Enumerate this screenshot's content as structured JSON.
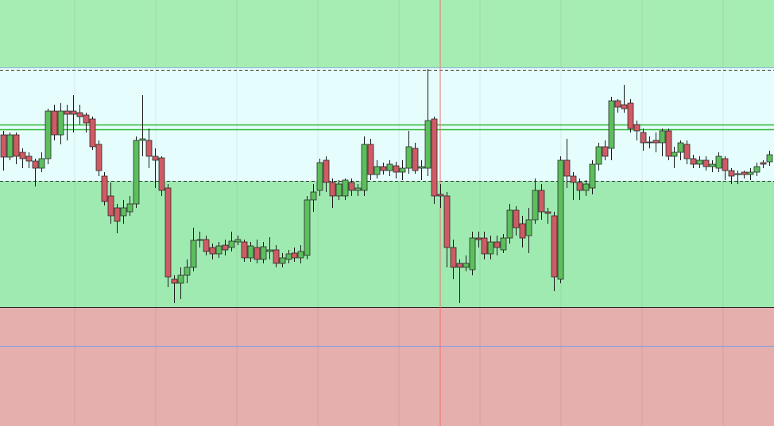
{
  "chart_data": {
    "type": "candlestick",
    "ylim": [
      0,
      537
    ],
    "grid": true,
    "up_color": "#5cbf5c",
    "down_color": "#cf5b64",
    "zones": [
      {
        "from": 452,
        "to": 537,
        "color": "#a6edb3"
      },
      {
        "from": 309,
        "to": 452,
        "color": "#e6fdfd"
      },
      {
        "from": 150,
        "to": 309,
        "color": "#9feab1"
      },
      {
        "from": 0,
        "to": 150,
        "color": "#e5afad"
      }
    ],
    "lines": [
      {
        "value": 452,
        "color": "#8fb0e0",
        "style": "solid"
      },
      {
        "value": 449,
        "color": "#333333",
        "style": "dashed"
      },
      {
        "value": 380,
        "color": "#2db52d",
        "style": "solid"
      },
      {
        "value": 374,
        "color": "#2db52d",
        "style": "solid"
      },
      {
        "value": 309,
        "color": "#333333",
        "style": "dashed"
      },
      {
        "value": 150,
        "color": "#222222",
        "style": "solid"
      },
      {
        "value": 101,
        "color": "#7a9ee8",
        "style": "solid"
      }
    ],
    "candles": [
      [
        367,
        372,
        322,
        339
      ],
      [
        339,
        370,
        335,
        367
      ],
      [
        367,
        370,
        330,
        340
      ],
      [
        345,
        350,
        325,
        337
      ],
      [
        340,
        345,
        325,
        334
      ],
      [
        334,
        337,
        302,
        325
      ],
      [
        325,
        345,
        320,
        337
      ],
      [
        337,
        400,
        330,
        397
      ],
      [
        397,
        405,
        360,
        367
      ],
      [
        367,
        407,
        355,
        397
      ],
      [
        397,
        405,
        360,
        393
      ],
      [
        397,
        417,
        370,
        393
      ],
      [
        395,
        405,
        380,
        390
      ],
      [
        392,
        395,
        370,
        382
      ],
      [
        387,
        390,
        348,
        352
      ],
      [
        355,
        360,
        315,
        322
      ],
      [
        315,
        320,
        278,
        283
      ],
      [
        290,
        307,
        255,
        265
      ],
      [
        275,
        280,
        243,
        258
      ],
      [
        265,
        285,
        255,
        275
      ],
      [
        270,
        290,
        265,
        280
      ],
      [
        280,
        365,
        275,
        360
      ],
      [
        360,
        417,
        340,
        362
      ],
      [
        360,
        375,
        325,
        340
      ],
      [
        340,
        350,
        300,
        335
      ],
      [
        338,
        340,
        290,
        297
      ],
      [
        300,
        305,
        175,
        188
      ],
      [
        185,
        190,
        155,
        180
      ],
      [
        180,
        200,
        160,
        190
      ],
      [
        190,
        210,
        180,
        200
      ],
      [
        200,
        250,
        195,
        234
      ],
      [
        234,
        245,
        225,
        235
      ],
      [
        235,
        240,
        215,
        220
      ],
      [
        225,
        230,
        210,
        217
      ],
      [
        217,
        232,
        212,
        227
      ],
      [
        228,
        235,
        215,
        222
      ],
      [
        225,
        245,
        220,
        233
      ],
      [
        232,
        240,
        228,
        235
      ],
      [
        232,
        235,
        207,
        212
      ],
      [
        212,
        232,
        207,
        227
      ],
      [
        225,
        235,
        205,
        210
      ],
      [
        210,
        232,
        205,
        226
      ],
      [
        220,
        238,
        210,
        222
      ],
      [
        222,
        228,
        200,
        205
      ],
      [
        205,
        218,
        200,
        212
      ],
      [
        210,
        222,
        205,
        217
      ],
      [
        218,
        225,
        207,
        212
      ],
      [
        212,
        228,
        205,
        220
      ],
      [
        215,
        290,
        210,
        285
      ],
      [
        285,
        305,
        270,
        295
      ],
      [
        297,
        337,
        290,
        332
      ],
      [
        335,
        340,
        295,
        307
      ],
      [
        307,
        312,
        275,
        290
      ],
      [
        290,
        310,
        285,
        305
      ],
      [
        290,
        312,
        285,
        310
      ],
      [
        307,
        312,
        290,
        297
      ],
      [
        297,
        305,
        290,
        300
      ],
      [
        297,
        365,
        290,
        355
      ],
      [
        355,
        362,
        310,
        317
      ],
      [
        317,
        335,
        312,
        327
      ],
      [
        327,
        332,
        317,
        322
      ],
      [
        322,
        335,
        315,
        330
      ],
      [
        328,
        333,
        312,
        320
      ],
      [
        320,
        335,
        310,
        325
      ],
      [
        325,
        372,
        318,
        352
      ],
      [
        350,
        357,
        318,
        322
      ],
      [
        325,
        335,
        310,
        327
      ],
      [
        325,
        450,
        315,
        385
      ],
      [
        387,
        390,
        280,
        290
      ],
      [
        292,
        305,
        275,
        290
      ],
      [
        290,
        295,
        200,
        225
      ],
      [
        225,
        235,
        185,
        200
      ],
      [
        205,
        210,
        155,
        200
      ],
      [
        200,
        215,
        195,
        205
      ],
      [
        197,
        245,
        190,
        237
      ],
      [
        237,
        245,
        225,
        235
      ],
      [
        237,
        245,
        210,
        217
      ],
      [
        217,
        240,
        210,
        232
      ],
      [
        232,
        240,
        215,
        225
      ],
      [
        222,
        242,
        218,
        237
      ],
      [
        237,
        280,
        230,
        272
      ],
      [
        272,
        277,
        240,
        250
      ],
      [
        255,
        265,
        225,
        237
      ],
      [
        240,
        275,
        218,
        260
      ],
      [
        260,
        312,
        255,
        297
      ],
      [
        297,
        305,
        260,
        270
      ],
      [
        270,
        275,
        255,
        268
      ],
      [
        265,
        270,
        170,
        188
      ],
      [
        185,
        340,
        180,
        335
      ],
      [
        335,
        362,
        300,
        315
      ],
      [
        315,
        320,
        285,
        307
      ],
      [
        307,
        312,
        285,
        297
      ],
      [
        297,
        310,
        290,
        305
      ],
      [
        300,
        335,
        292,
        330
      ],
      [
        330,
        357,
        322,
        352
      ],
      [
        352,
        360,
        335,
        340
      ],
      [
        350,
        415,
        335,
        410
      ],
      [
        410,
        412,
        395,
        402
      ],
      [
        405,
        430,
        395,
        400
      ],
      [
        407,
        412,
        370,
        375
      ],
      [
        380,
        385,
        360,
        372
      ],
      [
        370,
        375,
        347,
        357
      ],
      [
        358,
        365,
        350,
        357
      ],
      [
        360,
        370,
        345,
        357
      ],
      [
        357,
        375,
        340,
        372
      ],
      [
        372,
        375,
        335,
        340
      ],
      [
        340,
        352,
        325,
        345
      ],
      [
        345,
        360,
        335,
        357
      ],
      [
        355,
        360,
        330,
        337
      ],
      [
        337,
        342,
        325,
        330
      ],
      [
        330,
        340,
        325,
        335
      ],
      [
        335,
        340,
        322,
        327
      ],
      [
        327,
        335,
        320,
        330
      ],
      [
        325,
        345,
        320,
        340
      ],
      [
        337,
        340,
        310,
        322
      ],
      [
        322,
        325,
        305,
        315
      ],
      [
        318,
        322,
        305,
        317
      ],
      [
        320,
        322,
        312,
        317
      ],
      [
        317,
        325,
        310,
        320
      ],
      [
        320,
        332,
        315,
        327
      ],
      [
        332,
        335,
        325,
        330
      ],
      [
        333,
        347,
        328,
        342
      ]
    ]
  }
}
